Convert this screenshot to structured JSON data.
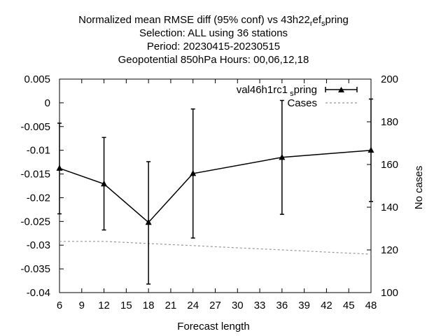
{
  "chart_data": {
    "type": "line",
    "title_lines": [
      "Normalized mean RMSE diff (95% conf) vs 43h22_ref_spring",
      "Selection: ALL using    36 stations",
      "Period: 20230415-20230515",
      "Geopotential 850hPa   Hours:  00,06,12,18"
    ],
    "title_line1": {
      "prefix": "Normalized mean RMSE diff (95% conf) vs 43h22",
      "sub1": "r",
      "mid": "ef",
      "sub2": "s",
      "suffix": "pring"
    },
    "xlabel": "Forecast length",
    "ylabel": "",
    "y2label": "No cases",
    "xlim": [
      6,
      48
    ],
    "ylim": [
      -0.04,
      0.005
    ],
    "y2lim": [
      100,
      200
    ],
    "x_ticks": [
      6,
      9,
      12,
      15,
      18,
      21,
      24,
      27,
      30,
      33,
      36,
      39,
      42,
      45,
      48
    ],
    "y_ticks": [
      0.005,
      0,
      -0.005,
      -0.01,
      -0.015,
      -0.02,
      -0.025,
      -0.03,
      -0.035,
      -0.04
    ],
    "y_tick_labels": [
      "0.005",
      "0",
      "-0.005",
      "-0.01",
      "-0.015",
      "-0.02",
      "-0.025",
      "-0.03",
      "-0.035",
      "-0.04"
    ],
    "y2_ticks": [
      100,
      120,
      140,
      160,
      180,
      200
    ],
    "grid": false,
    "legend_position": "top-right",
    "series": [
      {
        "name": "val46h1rc1_spring",
        "legend_main": "val46h1rc1",
        "legend_sub": "s",
        "legend_tail": "pring",
        "axis": "y",
        "style": "line-errorbars-triangle",
        "color": "#000000",
        "x": [
          6,
          12,
          18,
          24,
          36,
          48
        ],
        "y": [
          -0.0138,
          -0.0171,
          -0.0252,
          -0.0149,
          -0.0115,
          -0.01
        ],
        "y_low": [
          -0.0234,
          -0.0268,
          -0.0382,
          -0.0285,
          -0.0235,
          -0.0208
        ],
        "y_high": [
          -0.0043,
          -0.0073,
          -0.0124,
          -0.0013,
          0.0005,
          0.0008
        ]
      },
      {
        "name": "Cases",
        "axis": "y2",
        "style": "dashed",
        "color": "#999999",
        "x": [
          6,
          12,
          18,
          24,
          30,
          36,
          42,
          48
        ],
        "y": [
          124,
          124,
          123,
          122,
          121,
          120,
          119,
          118
        ]
      }
    ]
  }
}
